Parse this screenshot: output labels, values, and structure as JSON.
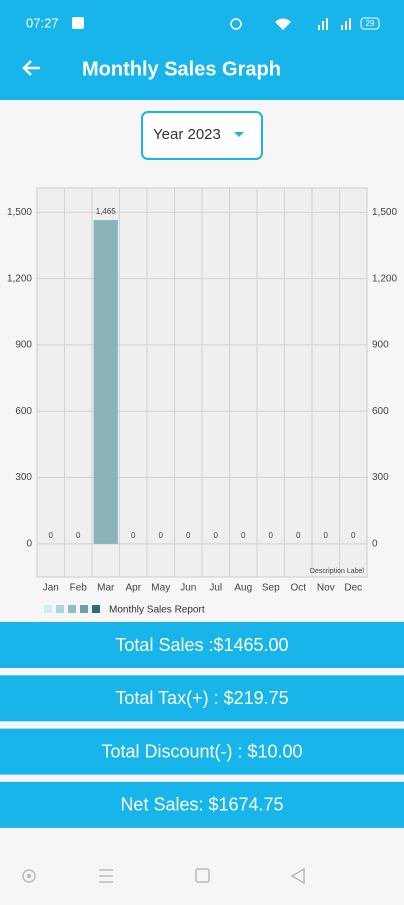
{
  "status_bar": {
    "time": "07:27",
    "battery": "29"
  },
  "app_bar": {
    "title": "Monthly Sales Graph"
  },
  "year_selector": {
    "label": "Year 2023"
  },
  "chart_data": {
    "type": "bar",
    "categories": [
      "Jan",
      "Feb",
      "Mar",
      "Apr",
      "May",
      "Jun",
      "Jul",
      "Aug",
      "Sep",
      "Oct",
      "Nov",
      "Dec"
    ],
    "series": [
      {
        "name": "Monthly Sales Report",
        "color": "#8ab4ba",
        "values": [
          0,
          0,
          1465,
          0,
          0,
          0,
          0,
          0,
          0,
          0,
          0,
          0
        ],
        "value_labels": [
          "0",
          "0",
          "1,465",
          "0",
          "0",
          "0",
          "0",
          "0",
          "0",
          "0",
          "0",
          "0"
        ]
      }
    ],
    "legend_colors": [
      "#c9f0f1",
      "#a6d8db",
      "#8cbec3",
      "#6c9fa6",
      "#2f6f79"
    ],
    "ylim": [
      -150,
      1610
    ],
    "yticks": [
      0,
      300,
      600,
      900,
      {
        "value": 1200,
        "label": "1,200"
      },
      {
        "value": 1500,
        "label": "1,500"
      }
    ],
    "grid": true,
    "description": "Description Label"
  },
  "summary": [
    "Total Sales :$1465.00",
    "Total Tax(+) : $219.75",
    "Total Discount(-) : $10.00",
    "Net Sales: $1674.75"
  ]
}
